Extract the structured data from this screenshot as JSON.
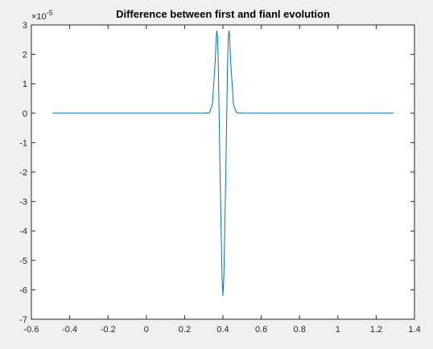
{
  "chart_data": {
    "type": "line",
    "title": "Difference between first and fianl evolution",
    "xlabel": "",
    "ylabel": "",
    "xlim": [
      -0.6,
      1.4
    ],
    "ylim": [
      -7,
      3
    ],
    "x_ticks": [
      -0.6,
      -0.4,
      -0.2,
      0,
      0.2,
      0.4,
      0.6,
      0.8,
      1,
      1.2,
      1.4
    ],
    "x_tick_labels": [
      "-0.6",
      "-0.4",
      "-0.2",
      "0",
      "0.2",
      "0.4",
      "0.6",
      "0.8",
      "1",
      "1.2",
      "1.4"
    ],
    "y_ticks": [
      -7,
      -6,
      -5,
      -4,
      -3,
      -2,
      -1,
      0,
      1,
      2,
      3
    ],
    "y_tick_labels": [
      "-7",
      "-6",
      "-5",
      "-4",
      "-3",
      "-2",
      "-1",
      "0",
      "1",
      "2",
      "3"
    ],
    "y_exponent_label": "×10",
    "y_exponent_power": "-5",
    "grid": false,
    "legend": "none",
    "series": [
      {
        "color": "#0072bd",
        "x": [
          -0.49,
          0.3,
          0.33,
          0.345,
          0.36,
          0.365,
          0.368,
          0.372,
          0.376,
          0.38,
          0.385,
          0.39,
          0.395,
          0.4,
          0.405,
          0.41,
          0.415,
          0.42,
          0.424,
          0.428,
          0.432,
          0.435,
          0.44,
          0.455,
          0.47,
          0.5,
          1.29
        ],
        "y": [
          0,
          0,
          0.02,
          0.3,
          1.8,
          2.6,
          2.8,
          2.6,
          1.6,
          0,
          -2.0,
          -3.8,
          -5.5,
          -6.2,
          -5.5,
          -3.8,
          -2.0,
          0,
          1.6,
          2.6,
          2.8,
          2.6,
          1.8,
          0.3,
          0.02,
          0,
          0
        ]
      }
    ]
  }
}
